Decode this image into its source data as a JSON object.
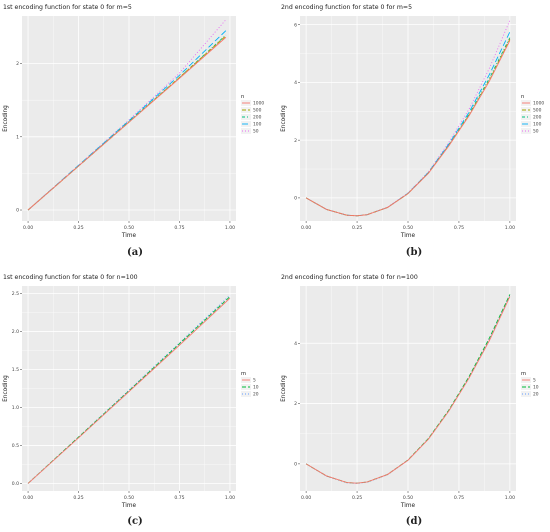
{
  "colors": {
    "panel_bg": "#ebebeb",
    "grid": "#ffffff",
    "text": "#444444"
  },
  "captions": [
    "(a)",
    "(b)",
    "(c)",
    "(d)"
  ],
  "chart_data": [
    {
      "type": "line",
      "title": "1st encoding function for state 0 for m=5",
      "xlabel": "Time",
      "ylabel": "Encoding",
      "xlim": [
        -0.03,
        1.03
      ],
      "ylim": [
        -0.15,
        2.65
      ],
      "xticks": [
        0,
        0.25,
        0.5,
        0.75,
        1
      ],
      "xtick_labels": [
        "0.00",
        "0.25",
        "0.50",
        "0.75",
        "1.00"
      ],
      "yticks": [
        0,
        1,
        2
      ],
      "ytick_labels": [
        "0",
        "1",
        "2"
      ],
      "legend_title": "n",
      "legend_position": "right",
      "series": [
        {
          "name": "1000",
          "color": "#f8766d",
          "dash": "",
          "x": [
            0,
            0.25,
            0.5,
            0.75,
            0.98
          ],
          "y": [
            0,
            0.6,
            1.2,
            1.8,
            2.36
          ]
        },
        {
          "name": "500",
          "color": "#a3a500",
          "dash": "4 2",
          "x": [
            0,
            0.25,
            0.5,
            0.75,
            0.98
          ],
          "y": [
            0,
            0.6,
            1.2,
            1.81,
            2.38
          ]
        },
        {
          "name": "200",
          "color": "#00bf7d",
          "dash": "3 2 1 2",
          "x": [
            0,
            0.25,
            0.5,
            0.75,
            0.98
          ],
          "y": [
            0,
            0.6,
            1.21,
            1.81,
            2.39
          ]
        },
        {
          "name": "100",
          "color": "#00b0f6",
          "dash": "6 3",
          "x": [
            0,
            0.25,
            0.5,
            0.75,
            0.98
          ],
          "y": [
            0,
            0.61,
            1.22,
            1.84,
            2.45
          ]
        },
        {
          "name": "50",
          "color": "#e76bf3",
          "dash": "1 2",
          "x": [
            0,
            0.25,
            0.5,
            0.75,
            0.98
          ],
          "y": [
            0,
            0.61,
            1.23,
            1.87,
            2.6
          ]
        }
      ]
    },
    {
      "type": "line",
      "title": "2nd encoding function for state 0 for m=5",
      "xlabel": "Time",
      "ylabel": "Encoding",
      "xlim": [
        -0.03,
        1.03
      ],
      "ylim": [
        -0.8,
        6.3
      ],
      "xticks": [
        0,
        0.25,
        0.5,
        0.75,
        1
      ],
      "xtick_labels": [
        "0.00",
        "0.25",
        "0.50",
        "0.75",
        "1.00"
      ],
      "yticks": [
        0,
        2,
        4,
        6
      ],
      "ytick_labels": [
        "0",
        "2",
        "4",
        "6"
      ],
      "legend_title": "n",
      "legend_position": "right",
      "series": [
        {
          "name": "1000",
          "color": "#f8766d",
          "dash": "",
          "x": [
            0,
            0.1,
            0.2,
            0.25,
            0.3,
            0.4,
            0.5,
            0.6,
            0.7,
            0.8,
            0.9,
            1.0
          ],
          "y": [
            0,
            -0.4,
            -0.6,
            -0.62,
            -0.58,
            -0.33,
            0.15,
            0.85,
            1.8,
            2.85,
            4.05,
            5.45
          ]
        },
        {
          "name": "500",
          "color": "#a3a500",
          "dash": "4 2",
          "x": [
            0,
            0.1,
            0.2,
            0.25,
            0.3,
            0.4,
            0.5,
            0.6,
            0.7,
            0.8,
            0.9,
            1.0
          ],
          "y": [
            0,
            -0.4,
            -0.6,
            -0.62,
            -0.58,
            -0.33,
            0.15,
            0.86,
            1.81,
            2.87,
            4.08,
            5.5
          ]
        },
        {
          "name": "200",
          "color": "#00bf7d",
          "dash": "3 2 1 2",
          "x": [
            0,
            0.1,
            0.2,
            0.25,
            0.3,
            0.4,
            0.5,
            0.6,
            0.7,
            0.8,
            0.9,
            1.0
          ],
          "y": [
            0,
            -0.4,
            -0.6,
            -0.62,
            -0.58,
            -0.33,
            0.15,
            0.86,
            1.82,
            2.9,
            4.15,
            5.55
          ]
        },
        {
          "name": "100",
          "color": "#00b0f6",
          "dash": "6 3",
          "x": [
            0,
            0.1,
            0.2,
            0.25,
            0.3,
            0.4,
            0.5,
            0.6,
            0.7,
            0.8,
            0.9,
            1.0
          ],
          "y": [
            0,
            -0.4,
            -0.6,
            -0.62,
            -0.58,
            -0.33,
            0.16,
            0.88,
            1.86,
            2.97,
            4.28,
            5.75
          ]
        },
        {
          "name": "50",
          "color": "#e76bf3",
          "dash": "1 2",
          "x": [
            0,
            0.1,
            0.2,
            0.25,
            0.3,
            0.4,
            0.5,
            0.6,
            0.7,
            0.8,
            0.9,
            1.0
          ],
          "y": [
            0,
            -0.4,
            -0.6,
            -0.62,
            -0.58,
            -0.32,
            0.17,
            0.9,
            1.92,
            3.08,
            4.5,
            6.15
          ]
        }
      ]
    },
    {
      "type": "line",
      "title": "1st encoding function for state 0 for n=100",
      "xlabel": "Time",
      "ylabel": "Encoding",
      "xlim": [
        -0.03,
        1.03
      ],
      "ylim": [
        -0.1,
        2.6
      ],
      "xticks": [
        0,
        0.25,
        0.5,
        0.75,
        1
      ],
      "xtick_labels": [
        "0.00",
        "0.25",
        "0.50",
        "0.75",
        "1.00"
      ],
      "yticks": [
        0,
        0.5,
        1,
        1.5,
        2,
        2.5
      ],
      "ytick_labels": [
        "0.0",
        "0.5",
        "1.0",
        "1.5",
        "2.0",
        "2.5"
      ],
      "legend_title": "m",
      "legend_position": "right",
      "series": [
        {
          "name": "5",
          "color": "#f8766d",
          "dash": "",
          "x": [
            0,
            0.25,
            0.5,
            0.75,
            1.0
          ],
          "y": [
            0,
            0.6,
            1.21,
            1.82,
            2.44
          ]
        },
        {
          "name": "10",
          "color": "#00ba38",
          "dash": "4 2",
          "x": [
            0,
            0.25,
            0.5,
            0.75,
            1.0
          ],
          "y": [
            0,
            0.61,
            1.22,
            1.84,
            2.46
          ]
        },
        {
          "name": "20",
          "color": "#619cff",
          "dash": "1 2",
          "x": [
            0,
            0.25,
            0.5,
            0.75,
            1.0
          ],
          "y": [
            0,
            0.61,
            1.23,
            1.85,
            2.48
          ]
        }
      ]
    },
    {
      "type": "line",
      "title": "2nd encoding function for state 0 for n=100",
      "xlabel": "Time",
      "ylabel": "Encoding",
      "xlim": [
        -0.03,
        1.03
      ],
      "ylim": [
        -0.9,
        5.9
      ],
      "xticks": [
        0,
        0.25,
        0.5,
        0.75,
        1
      ],
      "xtick_labels": [
        "0.00",
        "0.25",
        "0.50",
        "0.75",
        "1.00"
      ],
      "yticks": [
        0,
        2,
        4
      ],
      "ytick_labels": [
        "0",
        "2",
        "4"
      ],
      "legend_title": "m",
      "legend_position": "right",
      "series": [
        {
          "name": "5",
          "color": "#f8766d",
          "dash": "",
          "x": [
            0,
            0.1,
            0.2,
            0.25,
            0.3,
            0.4,
            0.5,
            0.6,
            0.7,
            0.8,
            0.9,
            1.0
          ],
          "y": [
            0,
            -0.4,
            -0.62,
            -0.64,
            -0.6,
            -0.35,
            0.12,
            0.82,
            1.75,
            2.85,
            4.1,
            5.55
          ]
        },
        {
          "name": "10",
          "color": "#00ba38",
          "dash": "4 2",
          "x": [
            0,
            0.1,
            0.2,
            0.25,
            0.3,
            0.4,
            0.5,
            0.6,
            0.7,
            0.8,
            0.9,
            1.0
          ],
          "y": [
            0,
            -0.4,
            -0.62,
            -0.64,
            -0.6,
            -0.35,
            0.13,
            0.84,
            1.78,
            2.9,
            4.18,
            5.62
          ]
        },
        {
          "name": "20",
          "color": "#619cff",
          "dash": "1 2",
          "x": [
            0,
            0.1,
            0.2,
            0.25,
            0.3,
            0.4,
            0.5,
            0.6,
            0.7,
            0.8,
            0.9,
            1.0
          ],
          "y": [
            0,
            -0.41,
            -0.63,
            -0.65,
            -0.61,
            -0.36,
            0.12,
            0.83,
            1.76,
            2.87,
            4.14,
            5.6
          ]
        }
      ]
    }
  ]
}
